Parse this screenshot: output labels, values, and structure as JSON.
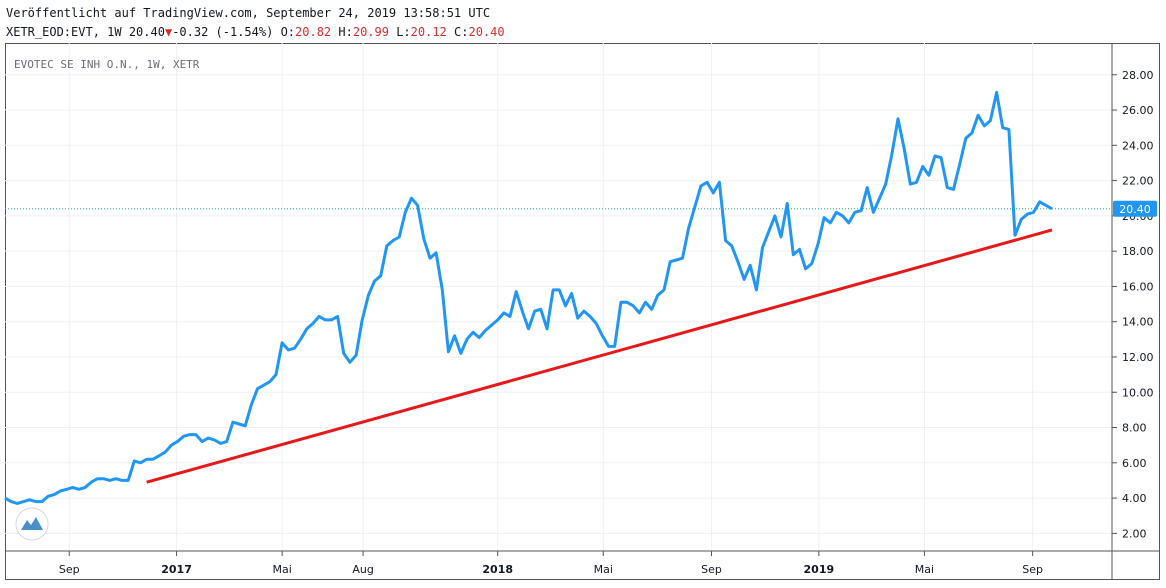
{
  "header": {
    "published": "Veröffentlicht auf TradingView.com, September 24, 2019 13:58:51 UTC",
    "symbol": "XETR_EOD:EVT, 1W",
    "last": "20.40",
    "change": "-0.32 (-1.54%)",
    "o_label": "O:",
    "o_value": "20.82",
    "h_label": "H:",
    "h_value": "20.99",
    "l_label": "L:",
    "l_value": "20.12",
    "c_label": "C:",
    "c_value": "20.40"
  },
  "chart_data": {
    "type": "line",
    "title": "EVOTEC SE INH O.N., 1W, XETR",
    "x_tick_labels": [
      "Sep",
      "2017",
      "Mai",
      "Aug",
      "2018",
      "Mai",
      "Sep",
      "2019",
      "Mai",
      "Sep"
    ],
    "x_tick_dates": [
      "2016-09-01",
      "2017-01-01",
      "2017-05-01",
      "2017-08-01",
      "2018-01-01",
      "2018-05-01",
      "2018-09-01",
      "2019-01-01",
      "2019-05-01",
      "2019-09-01"
    ],
    "y_ticks": [
      "2.00",
      "4.00",
      "6.00",
      "8.00",
      "10.00",
      "12.00",
      "14.00",
      "16.00",
      "18.00",
      "20.00",
      "22.00",
      "24.00",
      "26.00",
      "28.00"
    ],
    "ylim": [
      1.0,
      29.8
    ],
    "grid": true,
    "current_price_label": "20.40",
    "colors": {
      "price": "#2196f3",
      "trend": "#e6181a",
      "last_line": "#26a69a",
      "down": "#d32f2f"
    },
    "series": [
      {
        "x": [
          "2016-06-20",
          "2016-06-27",
          "2016-07-04",
          "2016-07-11",
          "2016-07-18",
          "2016-07-25",
          "2016-08-01",
          "2016-08-08",
          "2016-08-15",
          "2016-08-22",
          "2016-08-29",
          "2016-09-05",
          "2016-09-12",
          "2016-09-19",
          "2016-09-26",
          "2016-10-03",
          "2016-10-10",
          "2016-10-17",
          "2016-10-24",
          "2016-10-31",
          "2016-11-07",
          "2016-11-14",
          "2016-11-21",
          "2016-11-28",
          "2016-12-05",
          "2016-12-12",
          "2016-12-19",
          "2016-12-26",
          "2017-01-02",
          "2017-01-09",
          "2017-01-16",
          "2017-01-23",
          "2017-01-30",
          "2017-02-06",
          "2017-02-13",
          "2017-02-20",
          "2017-02-27",
          "2017-03-06",
          "2017-03-13",
          "2017-03-20",
          "2017-03-27",
          "2017-04-03",
          "2017-04-10",
          "2017-04-17",
          "2017-04-24",
          "2017-05-01",
          "2017-05-08",
          "2017-05-15",
          "2017-05-22",
          "2017-05-29",
          "2017-06-05",
          "2017-06-12",
          "2017-06-19",
          "2017-06-26",
          "2017-07-03",
          "2017-07-10",
          "2017-07-17",
          "2017-07-24",
          "2017-07-31",
          "2017-08-07",
          "2017-08-14",
          "2017-08-21",
          "2017-08-28",
          "2017-09-04",
          "2017-09-11",
          "2017-09-18",
          "2017-09-25",
          "2017-10-02",
          "2017-10-09",
          "2017-10-16",
          "2017-10-23",
          "2017-10-30",
          "2017-11-06",
          "2017-11-13",
          "2017-11-20",
          "2017-11-27",
          "2017-12-04",
          "2017-12-11",
          "2017-12-18",
          "2017-12-25",
          "2018-01-01",
          "2018-01-08",
          "2018-01-15",
          "2018-01-22",
          "2018-01-29",
          "2018-02-05",
          "2018-02-12",
          "2018-02-19",
          "2018-02-26",
          "2018-03-05",
          "2018-03-12",
          "2018-03-19",
          "2018-03-26",
          "2018-04-02",
          "2018-04-09",
          "2018-04-16",
          "2018-04-23",
          "2018-04-30",
          "2018-05-07",
          "2018-05-14",
          "2018-05-21",
          "2018-05-28",
          "2018-06-04",
          "2018-06-11",
          "2018-06-18",
          "2018-06-25",
          "2018-07-02",
          "2018-07-09",
          "2018-07-16",
          "2018-07-23",
          "2018-07-30",
          "2018-08-06",
          "2018-08-13",
          "2018-08-20",
          "2018-08-27",
          "2018-09-03",
          "2018-09-10",
          "2018-09-17",
          "2018-09-24",
          "2018-10-01",
          "2018-10-08",
          "2018-10-15",
          "2018-10-22",
          "2018-10-29",
          "2018-11-05",
          "2018-11-12",
          "2018-11-19",
          "2018-11-26",
          "2018-12-03",
          "2018-12-10",
          "2018-12-17",
          "2018-12-24",
          "2018-12-31",
          "2019-01-07",
          "2019-01-14",
          "2019-01-21",
          "2019-01-28",
          "2019-02-04",
          "2019-02-11",
          "2019-02-18",
          "2019-02-25",
          "2019-03-04",
          "2019-03-11",
          "2019-03-18",
          "2019-03-25",
          "2019-04-01",
          "2019-04-08",
          "2019-04-15",
          "2019-04-22",
          "2019-04-29",
          "2019-05-06",
          "2019-05-13",
          "2019-05-20",
          "2019-05-27",
          "2019-06-03",
          "2019-06-10",
          "2019-06-17",
          "2019-06-24",
          "2019-07-01",
          "2019-07-08",
          "2019-07-15",
          "2019-07-22",
          "2019-07-29",
          "2019-08-05",
          "2019-08-12",
          "2019-08-19",
          "2019-08-26",
          "2019-09-02",
          "2019-09-09",
          "2019-09-16",
          "2019-09-23"
        ],
        "y": [
          4.0,
          3.8,
          3.7,
          3.8,
          3.9,
          3.8,
          3.8,
          4.1,
          4.2,
          4.4,
          4.5,
          4.6,
          4.5,
          4.6,
          4.9,
          5.1,
          5.1,
          5.0,
          5.1,
          5.0,
          5.0,
          6.1,
          6.0,
          6.2,
          6.2,
          6.4,
          6.6,
          7.0,
          7.2,
          7.5,
          7.6,
          7.6,
          7.2,
          7.4,
          7.3,
          7.1,
          7.2,
          8.3,
          8.2,
          8.1,
          9.3,
          10.2,
          10.4,
          10.6,
          11.0,
          12.8,
          12.4,
          12.5,
          13.0,
          13.6,
          13.9,
          14.3,
          14.1,
          14.1,
          14.3,
          12.2,
          11.7,
          12.1,
          14.1,
          15.5,
          16.3,
          16.6,
          18.3,
          18.6,
          18.8,
          20.2,
          21.0,
          20.6,
          18.7,
          17.6,
          17.9,
          15.8,
          12.3,
          13.2,
          12.2,
          13.0,
          13.4,
          13.1,
          13.5,
          13.8,
          14.1,
          14.5,
          14.3,
          15.7,
          14.6,
          13.6,
          14.6,
          14.7,
          13.6,
          15.8,
          15.8,
          14.9,
          15.6,
          14.2,
          14.6,
          14.3,
          13.9,
          13.2,
          12.6,
          12.6,
          15.1,
          15.1,
          14.9,
          14.5,
          15.1,
          14.7,
          15.5,
          15.8,
          17.4,
          17.5,
          17.6,
          19.3,
          20.5,
          21.7,
          21.9,
          21.3,
          21.9,
          18.6,
          18.3,
          17.4,
          16.4,
          17.2,
          15.8,
          18.2,
          19.1,
          20.0,
          18.8,
          20.7,
          17.8,
          18.1,
          17.0,
          17.3,
          18.4,
          19.9,
          19.6,
          20.2,
          20.0,
          19.6,
          20.2,
          20.3,
          21.6,
          20.2,
          21.0,
          21.8,
          23.5,
          25.5,
          23.8,
          21.8,
          21.9,
          22.8,
          22.3,
          23.4,
          23.3,
          21.6,
          21.5,
          22.9,
          24.4,
          24.7,
          25.7,
          25.1,
          25.4,
          27.0,
          25.0,
          24.9,
          18.9,
          19.8,
          20.1,
          20.2,
          20.8,
          20.6,
          20.4
        ]
      }
    ],
    "trendline": {
      "start": {
        "x": "2016-11-28",
        "y": 4.9
      },
      "end": {
        "x": "2019-09-23",
        "y": 19.2
      }
    }
  }
}
